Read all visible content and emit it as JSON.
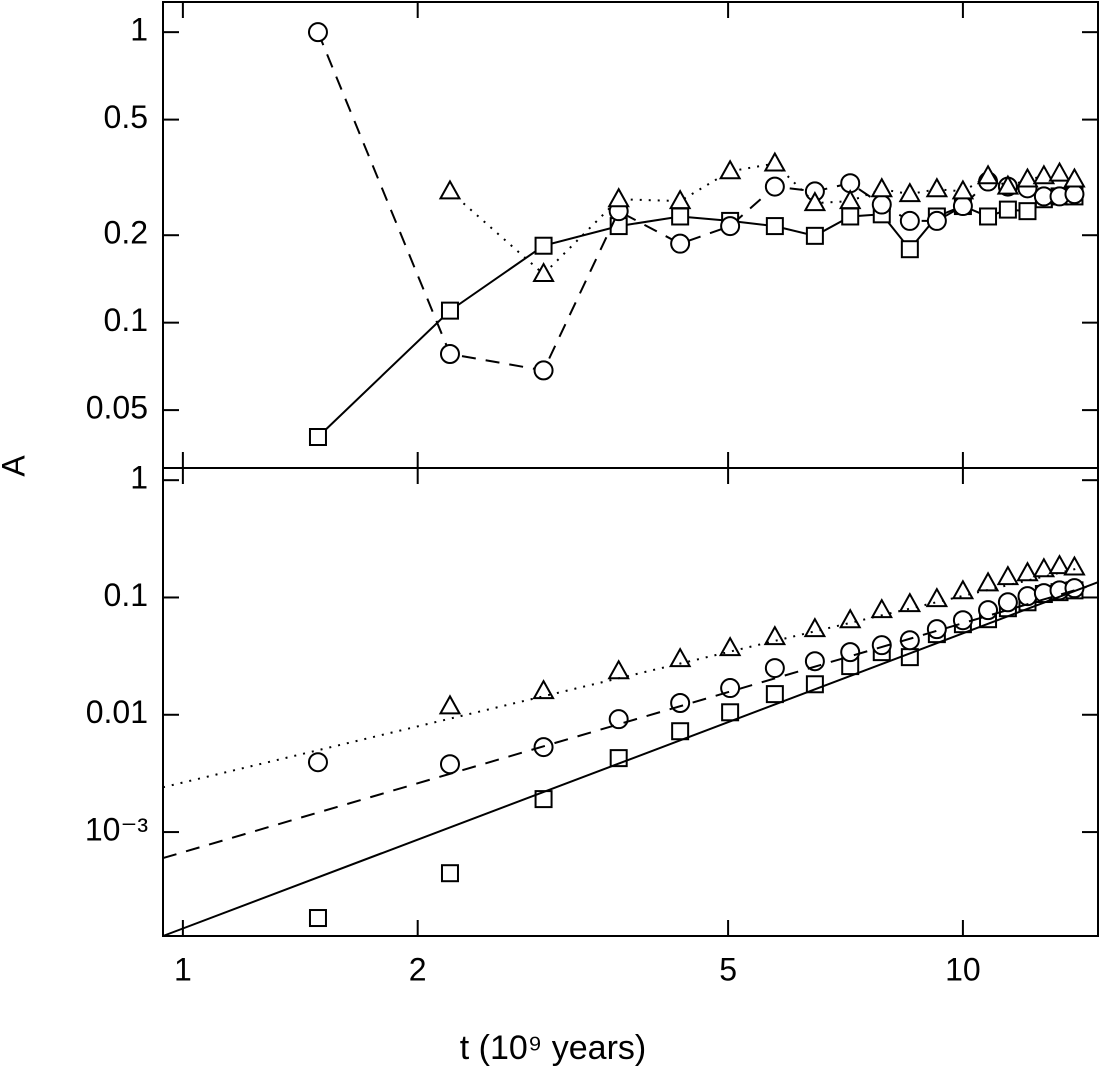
{
  "chart_data": [
    {
      "type": "line",
      "ylabel": "A",
      "xscale": "log",
      "yscale": "log",
      "xlim": [
        0.943,
        14.9
      ],
      "xticks": [
        1,
        2,
        5,
        10
      ],
      "ylim": [
        0.0316,
        1.27
      ],
      "yticks": [
        0.05,
        0.1,
        0.2,
        0.5,
        1
      ],
      "x": [
        1.49,
        2.2,
        2.9,
        3.62,
        4.34,
        5.03,
        5.74,
        6.46,
        7.17,
        7.87,
        8.55,
        9.26,
        10,
        10.77,
        11.42,
        12.1,
        12.7,
        13.3,
        13.9
      ],
      "series": [
        {
          "marker": "square",
          "linestyle": "solid",
          "color": "#000000",
          "values": [
            0.0404,
            0.11,
            0.184,
            0.215,
            0.232,
            0.224,
            0.215,
            0.199,
            0.232,
            0.236,
            0.179,
            0.232,
            0.252,
            0.232,
            0.245,
            0.242,
            0.266,
            0.272,
            0.272
          ]
        },
        {
          "marker": "circle",
          "linestyle": "dashed",
          "color": "#000000",
          "values": [
            1.0,
            0.078,
            0.0685,
            0.242,
            0.187,
            0.215,
            0.294,
            0.283,
            0.302,
            0.255,
            0.224,
            0.224,
            0.252,
            0.306,
            0.294,
            0.29,
            0.272,
            0.272,
            0.277
          ]
        },
        {
          "marker": "triangle",
          "linestyle": "dotted",
          "color": "#000000",
          "values": [
            null,
            0.283,
            0.147,
            0.266,
            0.262,
            0.332,
            0.353,
            0.258,
            0.262,
            0.288,
            0.277,
            0.288,
            0.283,
            0.319,
            0.294,
            0.311,
            0.319,
            0.326,
            0.311
          ]
        }
      ]
    },
    {
      "type": "line",
      "xlabel": "t (10⁹ years)",
      "xscale": "log",
      "yscale": "log",
      "xlim": [
        0.943,
        14.9
      ],
      "xticks": [
        1,
        2,
        5,
        10
      ],
      "ylim": [
        0.00013,
        1.27
      ],
      "yticks": [
        {
          "value": 0.001,
          "label": "10⁻³"
        },
        0.01,
        0.1,
        1
      ],
      "x": [
        1.49,
        2.2,
        2.9,
        3.62,
        4.34,
        5.03,
        5.74,
        6.46,
        7.17,
        7.87,
        8.55,
        9.26,
        10,
        10.77,
        11.42,
        12.1,
        12.7,
        13.3,
        13.9
      ],
      "series": [
        {
          "marker": "square",
          "linestyle": "none",
          "color": "#000000",
          "values": [
            0.000185,
            0.000446,
            0.00191,
            0.00427,
            0.00724,
            0.0105,
            0.015,
            0.0182,
            0.026,
            0.0342,
            0.031,
            0.0487,
            0.0592,
            0.0653,
            0.081,
            0.091,
            0.107,
            0.111,
            0.115
          ]
        },
        {
          "marker": "circle",
          "linestyle": "none",
          "color": "#000000",
          "values": [
            0.00394,
            0.00379,
            0.0053,
            0.00917,
            0.0126,
            0.0169,
            0.025,
            0.0286,
            0.0342,
            0.0392,
            0.0432,
            0.0537,
            0.064,
            0.078,
            0.091,
            0.1026,
            0.109,
            0.115,
            0.12
          ]
        },
        {
          "marker": "triangle",
          "linestyle": "none",
          "color": "#000000",
          "values": [
            null,
            0.0118,
            0.0159,
            0.0235,
            0.0298,
            0.037,
            0.0459,
            0.0537,
            0.064,
            0.078,
            0.0877,
            0.0968,
            0.113,
            0.132,
            0.149,
            0.161,
            0.174,
            0.185,
            0.18
          ]
        },
        {
          "marker": "none",
          "linestyle": "solid",
          "color": "#000000",
          "x": [
            0.943,
            14.9
          ],
          "values": [
            0.00013,
            0.135
          ]
        },
        {
          "marker": "none",
          "linestyle": "dashed",
          "color": "#000000",
          "x": [
            0.943,
            14.4
          ],
          "values": [
            0.0006,
            0.123
          ]
        },
        {
          "marker": "none",
          "linestyle": "dotted",
          "color": "#000000",
          "x": [
            0.943,
            14.2
          ],
          "values": [
            0.00241,
            0.18
          ]
        }
      ]
    }
  ]
}
